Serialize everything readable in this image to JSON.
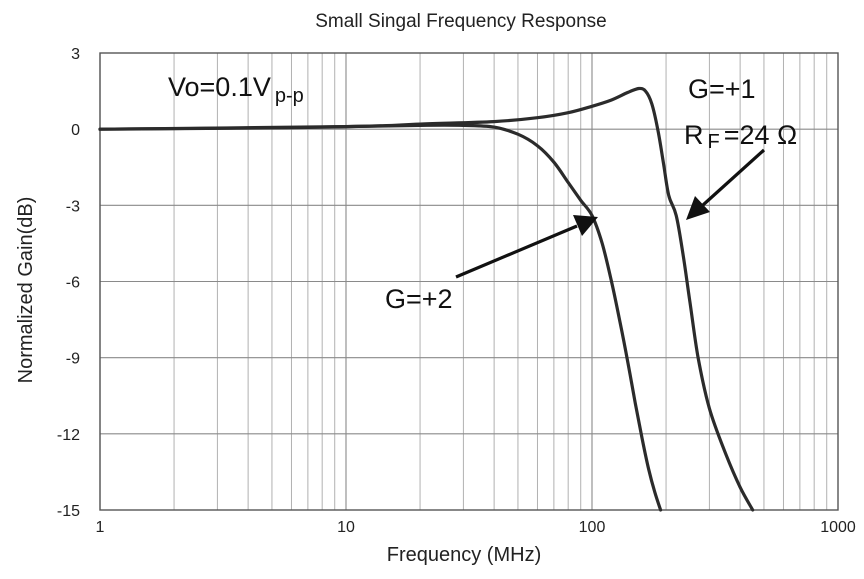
{
  "chart_data": {
    "type": "line",
    "title": "Small Singal Frequency Response",
    "xlabel": "Frequency (MHz)",
    "ylabel": "Normalized Gain(dB)",
    "xscale": "log",
    "xlim": [
      1,
      1000
    ],
    "ylim": [
      -15,
      3
    ],
    "x_ticks": [
      1,
      10,
      100,
      1000
    ],
    "x_tick_labels": [
      "1",
      "10",
      "100",
      "1000"
    ],
    "y_ticks": [
      3,
      0,
      -3,
      -6,
      -9,
      -12,
      -15
    ],
    "y_tick_labels": [
      "3",
      "0",
      "-3",
      "-6",
      "-9",
      "-12",
      "-15"
    ],
    "grid": true,
    "series": [
      {
        "name": "G=+2",
        "x": [
          1,
          5,
          10,
          20,
          30,
          40,
          50,
          60,
          70,
          80,
          90,
          100,
          110,
          120,
          130,
          140,
          150,
          160,
          170,
          180,
          190
        ],
        "y": [
          0,
          0.05,
          0.1,
          0.15,
          0.15,
          0.08,
          -0.2,
          -0.65,
          -1.3,
          -2.1,
          -2.8,
          -3.4,
          -4.5,
          -6.0,
          -7.6,
          -9.2,
          -10.8,
          -12.2,
          -13.4,
          -14.3,
          -15
        ]
      },
      {
        "name": "G=+1",
        "x": [
          1,
          10,
          20,
          40,
          60,
          80,
          100,
          120,
          140,
          155,
          165,
          175,
          185,
          195,
          205,
          220,
          235,
          250,
          270,
          300,
          350,
          400,
          450
        ],
        "y": [
          0,
          0.1,
          0.2,
          0.3,
          0.45,
          0.65,
          0.9,
          1.15,
          1.45,
          1.6,
          1.5,
          1.0,
          0.0,
          -1.3,
          -2.6,
          -3.4,
          -5.0,
          -6.8,
          -9.0,
          -11.0,
          -12.8,
          -14.1,
          -15
        ]
      }
    ],
    "annotations": [
      {
        "name": "vo",
        "prefix": "Vo=0.1V",
        "subscript": "p-p"
      },
      {
        "name": "g1",
        "text": "G=+1"
      },
      {
        "name": "rf",
        "prefix": "R",
        "subscript": "F",
        "suffix": "=24 Ω"
      },
      {
        "name": "g2",
        "text": "G=+2"
      }
    ]
  }
}
